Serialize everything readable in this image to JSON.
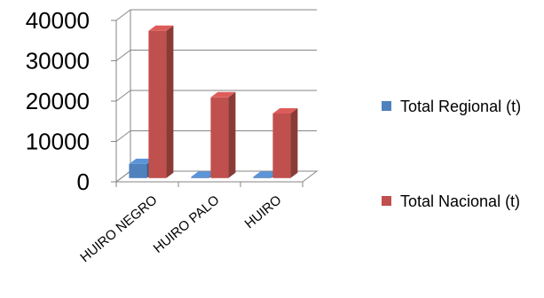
{
  "chart_data": {
    "type": "bar",
    "three_d": true,
    "categories": [
      "HUIRO NEGRO",
      "HUIRO PALO",
      "HUIRO"
    ],
    "series": [
      {
        "name": "Total Regional (t)",
        "values": [
          3500,
          300,
          300
        ],
        "color": "#4F81BD"
      },
      {
        "name": "Total Nacional (t)",
        "values": [
          36500,
          20000,
          16000
        ],
        "color": "#C0504D"
      }
    ],
    "ylim": [
      0,
      40000
    ],
    "yticks": [
      0,
      10000,
      20000,
      30000,
      40000
    ],
    "grid": true,
    "legend_position": "right"
  }
}
